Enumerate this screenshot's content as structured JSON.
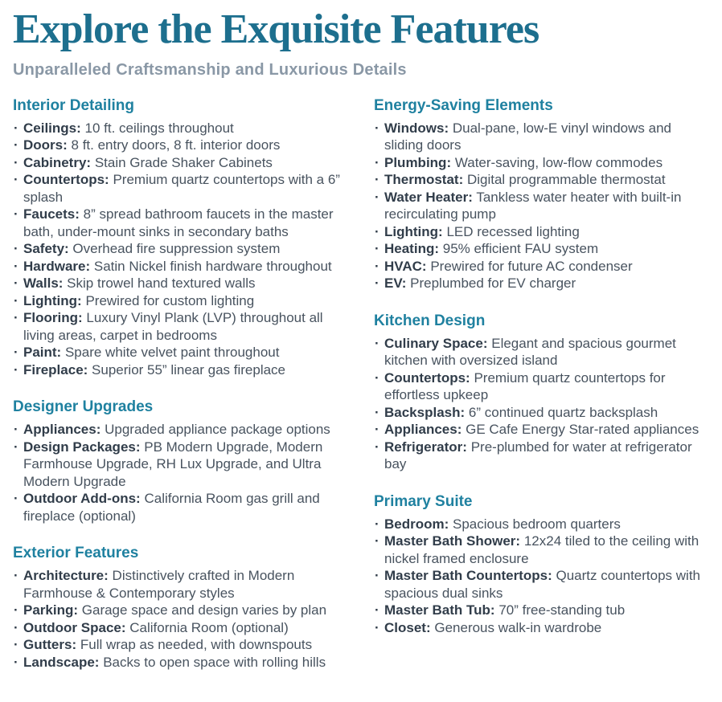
{
  "page": {
    "title": "Explore the Exquisite Features",
    "subtitle": "Unparalleled Craftsmanship and Luxurious Details"
  },
  "colors": {
    "title-color": "#1d6f8e",
    "heading-color": "#1f81a0",
    "label-color": "#313d4a",
    "body-color": "#48535f",
    "subtitle-color": "#8a98a6",
    "bg-color": "#ffffff"
  },
  "list_style": {
    "bullet_char": "·"
  },
  "columns": [
    {
      "sections": [
        {
          "heading": "Interior Detailing",
          "items": [
            {
              "label": "Ceilings:",
              "text": "10 ft. ceilings throughout"
            },
            {
              "label": "Doors:",
              "text": "8 ft. entry doors, 8 ft. interior doors"
            },
            {
              "label": "Cabinetry:",
              "text": "Stain Grade Shaker Cabinets"
            },
            {
              "label": "Countertops:",
              "text": "Premium quartz countertops with a 6” splash"
            },
            {
              "label": "Faucets:",
              "text": "8” spread bathroom faucets in the master bath, under-mount sinks in secondary baths"
            },
            {
              "label": "Safety:",
              "text": "Overhead fire suppression system"
            },
            {
              "label": "Hardware:",
              "text": "Satin Nickel finish hardware throughout"
            },
            {
              "label": "Walls:",
              "text": "Skip trowel hand textured walls"
            },
            {
              "label": "Lighting:",
              "text": "Prewired for custom lighting"
            },
            {
              "label": "Flooring:",
              "text": "Luxury Vinyl Plank (LVP) throughout all living areas, carpet in bedrooms"
            },
            {
              "label": "Paint:",
              "text": "Spare white velvet paint throughout"
            },
            {
              "label": "Fireplace:",
              "text": "Superior 55” linear gas fireplace"
            }
          ]
        },
        {
          "heading": "Designer Upgrades",
          "items": [
            {
              "label": "Appliances:",
              "text": "Upgraded appliance package options"
            },
            {
              "label": "Design Packages:",
              "text": "PB Modern Upgrade, Modern Farmhouse Upgrade, RH Lux Upgrade, and Ultra Modern Upgrade"
            },
            {
              "label": "Outdoor Add-ons:",
              "text": "California Room gas grill and fireplace (optional)"
            }
          ]
        },
        {
          "heading": "Exterior Features",
          "items": [
            {
              "label": "Architecture:",
              "text": "Distinctively crafted in Modern Farmhouse & Contemporary styles"
            },
            {
              "label": "Parking:",
              "text": "Garage space and design varies by plan"
            },
            {
              "label": "Outdoor Space:",
              "text": "California Room (optional)"
            },
            {
              "label": "Gutters:",
              "text": "Full wrap as needed, with downspouts"
            },
            {
              "label": "Landscape:",
              "text": "Backs to open space with rolling hills"
            }
          ]
        }
      ]
    },
    {
      "sections": [
        {
          "heading": "Energy-Saving Elements",
          "items": [
            {
              "label": "Windows:",
              "text": "Dual-pane, low-E vinyl windows and sliding doors"
            },
            {
              "label": "Plumbing:",
              "text": "Water-saving, low-flow commodes"
            },
            {
              "label": "Thermostat:",
              "text": "Digital programmable thermostat"
            },
            {
              "label": "Water Heater:",
              "text": "Tankless water heater with built-in recirculating pump"
            },
            {
              "label": "Lighting:",
              "text": "LED recessed lighting"
            },
            {
              "label": "Heating:",
              "text": "95% efficient FAU system"
            },
            {
              "label": "HVAC:",
              "text": "Prewired for future AC condenser"
            },
            {
              "label": "EV:",
              "text": "Preplumbed for EV charger"
            }
          ]
        },
        {
          "heading": "Kitchen Design",
          "items": [
            {
              "label": "Culinary Space:",
              "text": "Elegant and spacious gourmet kitchen with oversized island"
            },
            {
              "label": "Countertops:",
              "text": "Premium quartz countertops for effortless upkeep"
            },
            {
              "label": "Backsplash:",
              "text": "6” continued quartz backsplash"
            },
            {
              "label": "Appliances:",
              "text": "GE Cafe Energy Star-rated appliances"
            },
            {
              "label": "Refrigerator:",
              "text": "Pre-plumbed for water at refrigerator bay"
            }
          ]
        },
        {
          "heading": "Primary Suite",
          "items": [
            {
              "label": "Bedroom:",
              "text": "Spacious bedroom quarters"
            },
            {
              "label": "Master Bath Shower:",
              "text": "12x24 tiled to the ceiling with nickel framed enclosure"
            },
            {
              "label": "Master Bath Countertops:",
              "text": "Quartz countertops with spacious dual sinks"
            },
            {
              "label": "Master Bath Tub:",
              "text": "70” free-standing tub"
            },
            {
              "label": "Closet:",
              "text": "Generous walk-in wardrobe"
            }
          ]
        }
      ]
    }
  ]
}
